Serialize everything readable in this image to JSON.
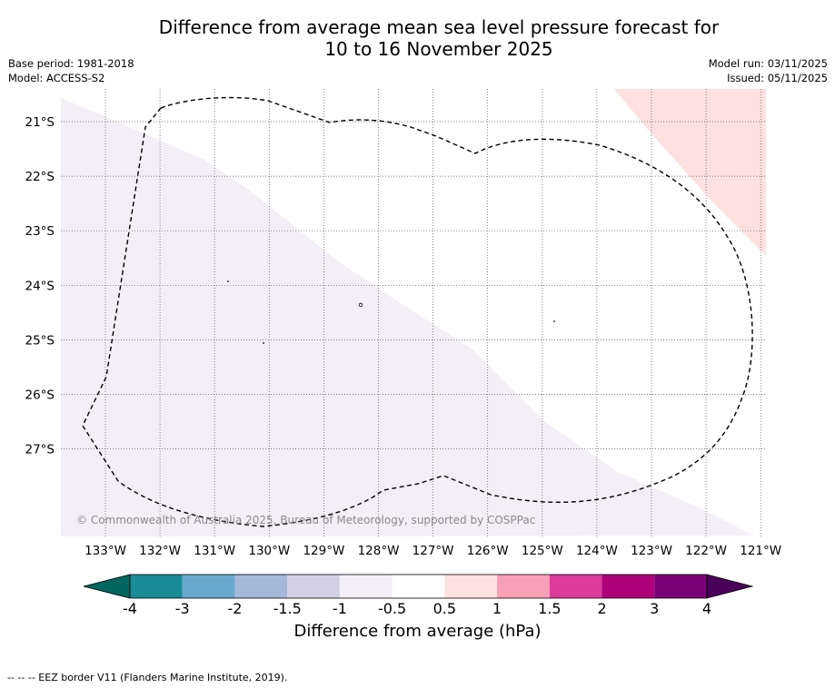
{
  "title_line1": "Difference from average mean sea level pressure forecast for",
  "title_line2": "10 to 16 November 2025",
  "base_period": "Base period: 1981-2018",
  "model": "Model: ACCESS-S2",
  "model_run": "Model run: 03/11/2025",
  "issued": "Issued: 05/11/2025",
  "copyright": "© Commonwealth of Australia 2025, Bureau of Meteorology, supported by COSPPac",
  "footnote": "--  --  -- EEZ border V11 (Flanders Marine Institute, 2019).",
  "colors": {
    "light_purple_anomaly": "#f4eef6",
    "light_pink_anomaly": "#fde0e0",
    "gridline": "#555555"
  },
  "map": {
    "lon_labels": [
      "133°W",
      "132°W",
      "131°W",
      "130°W",
      "129°W",
      "128°W",
      "127°W",
      "126°W",
      "125°W",
      "124°W",
      "123°W",
      "122°W",
      "121°W"
    ],
    "lat_labels": [
      "21°S",
      "22°S",
      "23°S",
      "24°S",
      "25°S",
      "26°S",
      "27°S"
    ]
  },
  "colorbar": {
    "title": "Difference from average (hPa)",
    "tick_labels": [
      "-4",
      "-3",
      "-2",
      "-1.5",
      "-1",
      "-0.5",
      "0.5",
      "1",
      "1.5",
      "2",
      "3",
      "4"
    ],
    "colors": [
      "#1a8c96",
      "#68aace",
      "#a5b8d9",
      "#d3d0e6",
      "#f4eef6",
      "#ffffff",
      "#fde0e0",
      "#f8a0b6",
      "#dd3c9c",
      "#ad0079",
      "#7a0077"
    ],
    "under_color": "#01665e",
    "over_color": "#4a0059"
  }
}
